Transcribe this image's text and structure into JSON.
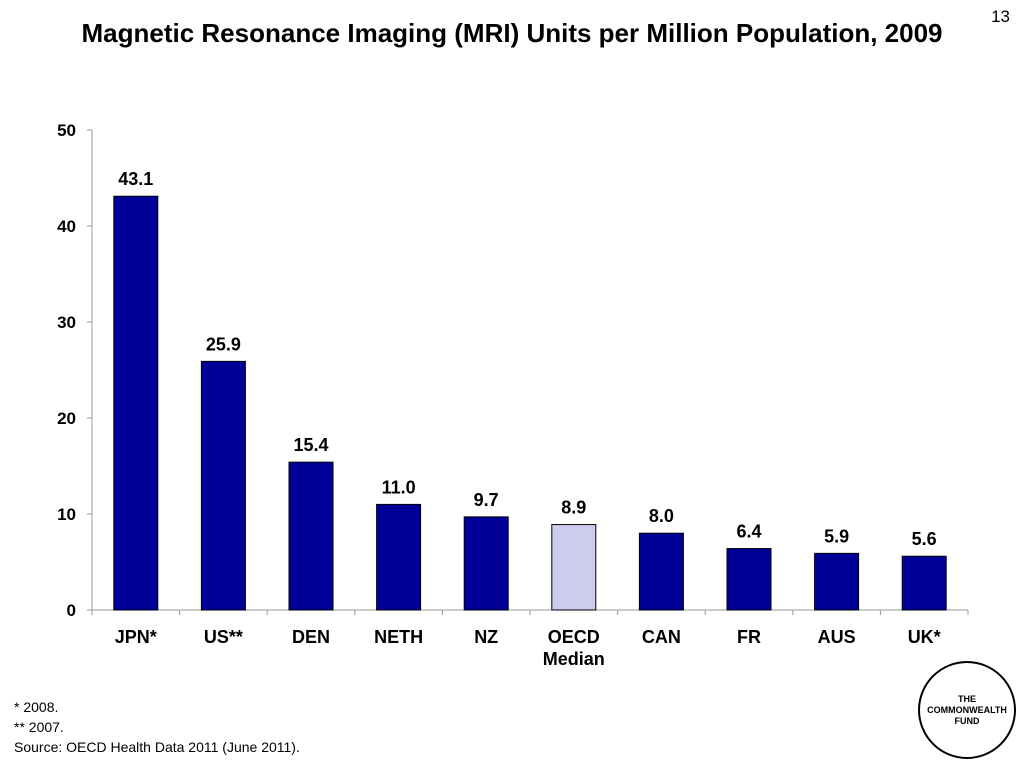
{
  "slide_number": "13",
  "chart_data": {
    "type": "bar",
    "title": "Magnetic Resonance Imaging (MRI) Units per Million Population, 2009",
    "categories": [
      [
        "JPN*"
      ],
      [
        "US**"
      ],
      [
        "DEN"
      ],
      [
        "NETH"
      ],
      [
        "NZ"
      ],
      [
        "OECD",
        "Median"
      ],
      [
        "CAN"
      ],
      [
        "FR"
      ],
      [
        "AUS"
      ],
      [
        "UK*"
      ]
    ],
    "values": [
      43.1,
      25.9,
      15.4,
      11.0,
      9.7,
      8.9,
      8.0,
      6.4,
      5.9,
      5.6
    ],
    "value_labels": [
      "43.1",
      "25.9",
      "15.4",
      "11.0",
      "9.7",
      "8.9",
      "8.0",
      "6.4",
      "5.9",
      "5.6"
    ],
    "ylim": [
      0,
      50
    ],
    "yticks": [
      0,
      10,
      20,
      30,
      40,
      50
    ],
    "xlabel": "",
    "ylabel": "",
    "grid": false,
    "colors": {
      "bar": "#000099",
      "highlight_bar": "#ccccee",
      "highlight_index": 5,
      "outline": "#000000"
    }
  },
  "footnotes": {
    "note1": "* 2008.",
    "note2": "** 2007.",
    "source": "Source: OECD Health Data 2011 (June 2011)."
  },
  "logo": {
    "line1": "THE",
    "line2": "COMMONWEALTH",
    "line3": "FUND"
  }
}
